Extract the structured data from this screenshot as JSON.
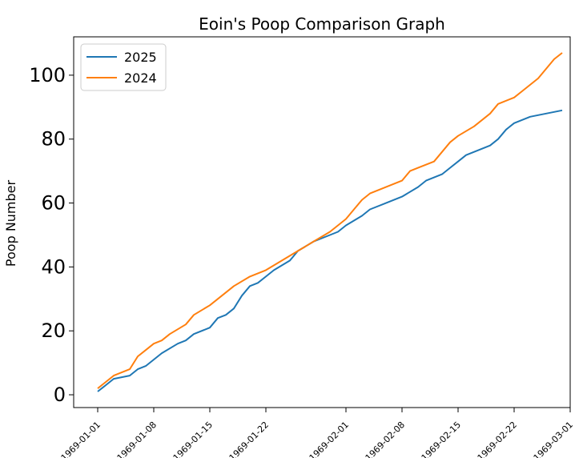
{
  "chart_data": {
    "type": "line",
    "title": "Eoin's Poop Comparison Graph",
    "xlabel": "",
    "ylabel": "Poop Number",
    "xlim": [
      "1968-12-29",
      "1969-03-01"
    ],
    "ylim": [
      -4,
      112
    ],
    "yticks": [
      0,
      20,
      40,
      60,
      80,
      100
    ],
    "xticks": [
      "1969-01-01",
      "1969-01-08",
      "1969-01-15",
      "1969-01-22",
      "1969-02-01",
      "1969-02-08",
      "1969-02-15",
      "1969-02-22",
      "1969-03-01"
    ],
    "legend_position": "top-left",
    "grid": false,
    "series": [
      {
        "name": "2025",
        "color": "#1f77b4",
        "points": [
          [
            "1969-01-01",
            1
          ],
          [
            "1969-01-02",
            3
          ],
          [
            "1969-01-03",
            5
          ],
          [
            "1969-01-05",
            6
          ],
          [
            "1969-01-06",
            8
          ],
          [
            "1969-01-07",
            9
          ],
          [
            "1969-01-08",
            11
          ],
          [
            "1969-01-09",
            13
          ],
          [
            "1969-01-11",
            16
          ],
          [
            "1969-01-12",
            17
          ],
          [
            "1969-01-13",
            19
          ],
          [
            "1969-01-15",
            21
          ],
          [
            "1969-01-16",
            24
          ],
          [
            "1969-01-17",
            25
          ],
          [
            "1969-01-18",
            27
          ],
          [
            "1969-01-19",
            31
          ],
          [
            "1969-01-20",
            34
          ],
          [
            "1969-01-21",
            35
          ],
          [
            "1969-01-22",
            37
          ],
          [
            "1969-01-23",
            39
          ],
          [
            "1969-01-25",
            42
          ],
          [
            "1969-01-26",
            45
          ],
          [
            "1969-01-28",
            48
          ],
          [
            "1969-01-29",
            49
          ],
          [
            "1969-01-31",
            51
          ],
          [
            "1969-02-01",
            53
          ],
          [
            "1969-02-03",
            56
          ],
          [
            "1969-02-04",
            58
          ],
          [
            "1969-02-06",
            60
          ],
          [
            "1969-02-08",
            62
          ],
          [
            "1969-02-10",
            65
          ],
          [
            "1969-02-11",
            67
          ],
          [
            "1969-02-13",
            69
          ],
          [
            "1969-02-14",
            71
          ],
          [
            "1969-02-15",
            73
          ],
          [
            "1969-02-16",
            75
          ],
          [
            "1969-02-17",
            76
          ],
          [
            "1969-02-19",
            78
          ],
          [
            "1969-02-20",
            80
          ],
          [
            "1969-02-21",
            83
          ],
          [
            "1969-02-22",
            85
          ],
          [
            "1969-02-24",
            87
          ],
          [
            "1969-02-26",
            88
          ],
          [
            "1969-02-28",
            89
          ]
        ]
      },
      {
        "name": "2024",
        "color": "#ff7f0e",
        "points": [
          [
            "1969-01-01",
            2
          ],
          [
            "1969-01-02",
            4
          ],
          [
            "1969-01-03",
            6
          ],
          [
            "1969-01-05",
            8
          ],
          [
            "1969-01-06",
            12
          ],
          [
            "1969-01-07",
            14
          ],
          [
            "1969-01-08",
            16
          ],
          [
            "1969-01-09",
            17
          ],
          [
            "1969-01-10",
            19
          ],
          [
            "1969-01-12",
            22
          ],
          [
            "1969-01-13",
            25
          ],
          [
            "1969-01-15",
            28
          ],
          [
            "1969-01-16",
            30
          ],
          [
            "1969-01-17",
            32
          ],
          [
            "1969-01-18",
            34
          ],
          [
            "1969-01-20",
            37
          ],
          [
            "1969-01-22",
            39
          ],
          [
            "1969-01-24",
            42
          ],
          [
            "1969-01-26",
            45
          ],
          [
            "1969-01-28",
            48
          ],
          [
            "1969-01-30",
            51
          ],
          [
            "1969-02-01",
            55
          ],
          [
            "1969-02-02",
            58
          ],
          [
            "1969-02-03",
            61
          ],
          [
            "1969-02-04",
            63
          ],
          [
            "1969-02-06",
            65
          ],
          [
            "1969-02-07",
            66
          ],
          [
            "1969-02-08",
            67
          ],
          [
            "1969-02-09",
            70
          ],
          [
            "1969-02-10",
            71
          ],
          [
            "1969-02-12",
            73
          ],
          [
            "1969-02-13",
            76
          ],
          [
            "1969-02-14",
            79
          ],
          [
            "1969-02-15",
            81
          ],
          [
            "1969-02-17",
            84
          ],
          [
            "1969-02-18",
            86
          ],
          [
            "1969-02-19",
            88
          ],
          [
            "1969-02-20",
            91
          ],
          [
            "1969-02-22",
            93
          ],
          [
            "1969-02-23",
            95
          ],
          [
            "1969-02-24",
            97
          ],
          [
            "1969-02-25",
            99
          ],
          [
            "1969-02-26",
            102
          ],
          [
            "1969-02-27",
            105
          ],
          [
            "1969-02-28",
            107
          ]
        ]
      }
    ]
  }
}
